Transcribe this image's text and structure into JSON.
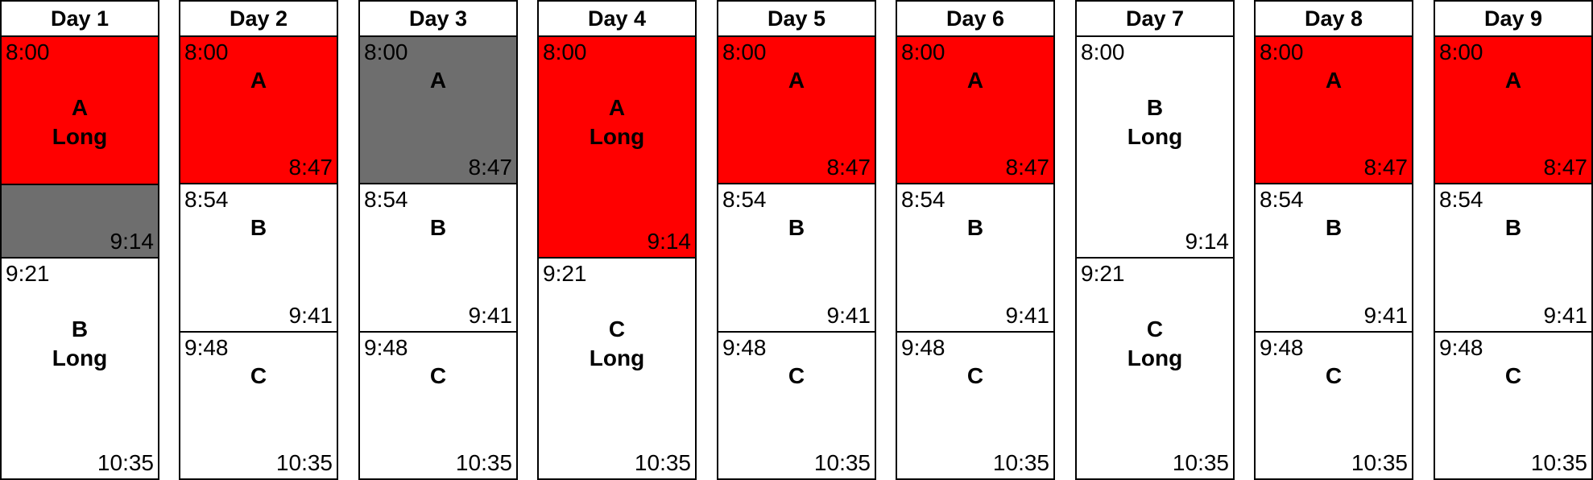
{
  "colors": {
    "red": "#ff0000",
    "gray": "#6e6e6e",
    "white": "#ffffff",
    "border": "#000000"
  },
  "days": [
    {
      "header": "Day 1",
      "blocks": [
        {
          "start": "8:00",
          "end": "9:14",
          "name": "A",
          "detail": "Long",
          "fills": [
            {
              "color": "red",
              "fraction": 0.667
            },
            {
              "color": "gray",
              "fraction": 0.333
            }
          ]
        },
        {
          "start": "9:21",
          "end": "10:35",
          "name": "B",
          "detail": "Long",
          "fills": [
            {
              "color": "white",
              "fraction": 1
            }
          ]
        }
      ]
    },
    {
      "header": "Day 2",
      "blocks": [
        {
          "start": "8:00",
          "end": "8:47",
          "name": "A",
          "fills": [
            {
              "color": "red",
              "fraction": 1
            }
          ]
        },
        {
          "start": "8:54",
          "end": "9:41",
          "name": "B",
          "fills": [
            {
              "color": "white",
              "fraction": 1
            }
          ]
        },
        {
          "start": "9:48",
          "end": "10:35",
          "name": "C",
          "fills": [
            {
              "color": "white",
              "fraction": 1
            }
          ]
        }
      ]
    },
    {
      "header": "Day 3",
      "blocks": [
        {
          "start": "8:00",
          "end": "8:47",
          "name": "A",
          "fills": [
            {
              "color": "gray",
              "fraction": 1
            }
          ]
        },
        {
          "start": "8:54",
          "end": "9:41",
          "name": "B",
          "fills": [
            {
              "color": "white",
              "fraction": 1
            }
          ]
        },
        {
          "start": "9:48",
          "end": "10:35",
          "name": "C",
          "fills": [
            {
              "color": "white",
              "fraction": 1
            }
          ]
        }
      ]
    },
    {
      "header": "Day 4",
      "blocks": [
        {
          "start": "8:00",
          "end": "9:14",
          "name": "A",
          "detail": "Long",
          "fills": [
            {
              "color": "red",
              "fraction": 1
            }
          ]
        },
        {
          "start": "9:21",
          "end": "10:35",
          "name": "C",
          "detail": "Long",
          "fills": [
            {
              "color": "white",
              "fraction": 1
            }
          ]
        }
      ]
    },
    {
      "header": "Day 5",
      "blocks": [
        {
          "start": "8:00",
          "end": "8:47",
          "name": "A",
          "fills": [
            {
              "color": "red",
              "fraction": 1
            }
          ]
        },
        {
          "start": "8:54",
          "end": "9:41",
          "name": "B",
          "fills": [
            {
              "color": "white",
              "fraction": 1
            }
          ]
        },
        {
          "start": "9:48",
          "end": "10:35",
          "name": "C",
          "fills": [
            {
              "color": "white",
              "fraction": 1
            }
          ]
        }
      ]
    },
    {
      "header": "Day 6",
      "blocks": [
        {
          "start": "8:00",
          "end": "8:47",
          "name": "A",
          "fills": [
            {
              "color": "red",
              "fraction": 1
            }
          ]
        },
        {
          "start": "8:54",
          "end": "9:41",
          "name": "B",
          "fills": [
            {
              "color": "white",
              "fraction": 1
            }
          ]
        },
        {
          "start": "9:48",
          "end": "10:35",
          "name": "C",
          "fills": [
            {
              "color": "white",
              "fraction": 1
            }
          ]
        }
      ]
    },
    {
      "header": "Day 7",
      "blocks": [
        {
          "start": "8:00",
          "end": "9:14",
          "name": "B",
          "detail": "Long",
          "fills": [
            {
              "color": "white",
              "fraction": 1
            }
          ]
        },
        {
          "start": "9:21",
          "end": "10:35",
          "name": "C",
          "detail": "Long",
          "fills": [
            {
              "color": "white",
              "fraction": 1
            }
          ]
        }
      ]
    },
    {
      "header": "Day 8",
      "blocks": [
        {
          "start": "8:00",
          "end": "8:47",
          "name": "A",
          "fills": [
            {
              "color": "red",
              "fraction": 1
            }
          ]
        },
        {
          "start": "8:54",
          "end": "9:41",
          "name": "B",
          "fills": [
            {
              "color": "white",
              "fraction": 1
            }
          ]
        },
        {
          "start": "9:48",
          "end": "10:35",
          "name": "C",
          "fills": [
            {
              "color": "white",
              "fraction": 1
            }
          ]
        }
      ]
    },
    {
      "header": "Day 9",
      "blocks": [
        {
          "start": "8:00",
          "end": "8:47",
          "name": "A",
          "fills": [
            {
              "color": "red",
              "fraction": 1
            }
          ]
        },
        {
          "start": "8:54",
          "end": "9:41",
          "name": "B",
          "fills": [
            {
              "color": "white",
              "fraction": 1
            }
          ]
        },
        {
          "start": "9:48",
          "end": "10:35",
          "name": "C",
          "fills": [
            {
              "color": "white",
              "fraction": 1
            }
          ]
        }
      ]
    }
  ]
}
